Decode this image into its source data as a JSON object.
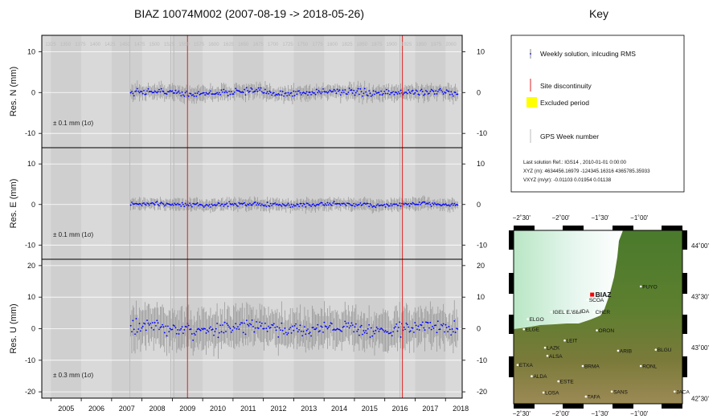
{
  "title": "BIAZ 10074M002 (2007-08-19 -> 2018-05-26)",
  "key": {
    "title": "Key",
    "weekly": "Weekly solution, inlcuding RMS",
    "discontinuity": "Site discontinuity",
    "excluded": "Excluded period",
    "gpsweek": "GPS Week number",
    "ref_line1": "Last solution Ref.: IGS14 , 2010-01-01  0:00:00",
    "ref_line2": "XYZ (m):  4634456.16979   -124345.16316   4365785.35933",
    "ref_line3": "VXYZ (m/yr):      -0.01103         0.01954        0.01138"
  },
  "colors": {
    "panel": "#d9d9d9",
    "band": "#cfcfcf",
    "points": "#0000ff",
    "error": "#9a9a9a",
    "discontinuity": "#dd2222",
    "excluded": "#ffff00"
  },
  "chart_data": [
    {
      "type": "scatter",
      "component": "N",
      "ylabel": "Res. N (mm)",
      "ylim": [
        -13.5,
        14
      ],
      "yticks": [
        -10,
        0,
        10
      ],
      "sigma": "± 0.1 mm (1σ)",
      "xlim": [
        2004.7,
        2018.55
      ],
      "discontinuities": [
        2009.5,
        2016.58
      ],
      "series": [
        {
          "x_range": [
            2007.63,
            2018.4
          ],
          "trend": 0,
          "spread": 0.8,
          "err": 1.5
        }
      ]
    },
    {
      "type": "scatter",
      "component": "E",
      "ylabel": "Res. E (mm)",
      "ylim": [
        -13.5,
        14
      ],
      "yticks": [
        -10,
        0,
        10
      ],
      "sigma": "± 0.1 mm (1σ)",
      "xlim": [
        2004.7,
        2018.55
      ],
      "discontinuities": [
        2009.5,
        2016.58
      ],
      "series": [
        {
          "x_range": [
            2007.63,
            2018.4
          ],
          "trend": 0,
          "spread": 0.5,
          "err": 1.2
        }
      ]
    },
    {
      "type": "scatter",
      "component": "U",
      "ylabel": "Res. U (mm)",
      "ylim": [
        -22,
        22
      ],
      "yticks": [
        -20,
        -10,
        0,
        10,
        20
      ],
      "sigma": "± 0.3 mm (1σ)",
      "xlim": [
        2004.7,
        2018.55
      ],
      "discontinuities": [
        2009.5,
        2016.58
      ],
      "series": [
        {
          "x_range": [
            2007.63,
            2018.4
          ],
          "trend": 0,
          "spread": 2.2,
          "err": 5
        }
      ]
    }
  ],
  "x_ticks": [
    "2005",
    "2006",
    "2007",
    "2008",
    "2009",
    "2010",
    "2011",
    "2012",
    "2013",
    "2014",
    "2015",
    "2016",
    "2017",
    "2018"
  ],
  "gps_weeks": [
    "1325",
    "1350",
    "1375",
    "1400",
    "1425",
    "1450",
    "1475",
    "1500",
    "1525",
    "1550",
    "1575",
    "1600",
    "1625",
    "1650",
    "1675",
    "1700",
    "1725",
    "1750",
    "1775",
    "1800",
    "1825",
    "1850",
    "1875",
    "1900",
    "1925",
    "1950",
    "1975",
    "2000"
  ],
  "map": {
    "top_ticks": [
      "−2˚30'",
      "−2˚00'",
      "−1˚30'",
      "−1˚00'"
    ],
    "bottom_ticks": [
      "−2˚30'",
      "−2˚00'",
      "−1˚30'",
      "−1˚00'"
    ],
    "lat_ticks": [
      "44˚00'",
      "43˚30'",
      "43˚00'",
      "42˚30'"
    ],
    "site": "BIAZ",
    "stations": [
      {
        "name": "PUYO",
        "lon": -0.98,
        "lat": 43.6
      },
      {
        "name": "SCOA",
        "lon": -1.66,
        "lat": 43.47
      },
      {
        "name": "IGEL",
        "lon": -2.12,
        "lat": 43.35
      },
      {
        "name": "EA",
        "lon": -1.95,
        "lat": 43.35
      },
      {
        "name": "SBI",
        "lon": -1.87,
        "lat": 43.35
      },
      {
        "name": "IDA",
        "lon": -1.77,
        "lat": 43.36
      },
      {
        "name": "CHER",
        "lon": -1.58,
        "lat": 43.35
      },
      {
        "name": "ELGO",
        "lon": -2.42,
        "lat": 43.28
      },
      {
        "name": "ELGE",
        "lon": -2.47,
        "lat": 43.18
      },
      {
        "name": "ORON",
        "lon": -1.54,
        "lat": 43.17
      },
      {
        "name": "LEIT",
        "lon": -1.95,
        "lat": 43.07
      },
      {
        "name": "LAZK",
        "lon": -2.2,
        "lat": 43.0
      },
      {
        "name": "ARIB",
        "lon": -1.27,
        "lat": 42.97
      },
      {
        "name": "BLGU",
        "lon": -0.79,
        "lat": 42.98
      },
      {
        "name": "ALSA",
        "lon": -2.17,
        "lat": 42.92
      },
      {
        "name": "ETXA",
        "lon": -2.55,
        "lat": 42.83
      },
      {
        "name": "BRMA",
        "lon": -1.72,
        "lat": 42.82
      },
      {
        "name": "RONL",
        "lon": -0.98,
        "lat": 42.82
      },
      {
        "name": "ALDA",
        "lon": -2.37,
        "lat": 42.72
      },
      {
        "name": "ESTE",
        "lon": -2.03,
        "lat": 42.67
      },
      {
        "name": "SANS",
        "lon": -1.35,
        "lat": 42.57
      },
      {
        "name": "JACA",
        "lon": -0.55,
        "lat": 42.57
      },
      {
        "name": "LOSA",
        "lon": -2.22,
        "lat": 42.56
      },
      {
        "name": "TAFA",
        "lon": -1.68,
        "lat": 42.52
      }
    ]
  }
}
